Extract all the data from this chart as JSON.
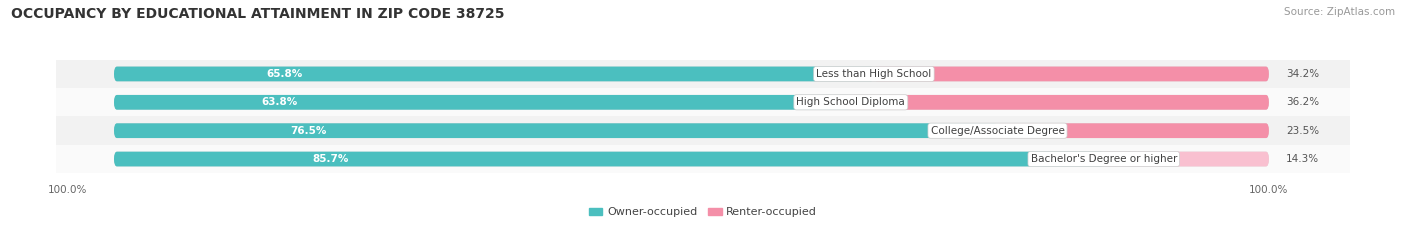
{
  "title": "OCCUPANCY BY EDUCATIONAL ATTAINMENT IN ZIP CODE 38725",
  "source": "Source: ZipAtlas.com",
  "categories": [
    "Less than High School",
    "High School Diploma",
    "College/Associate Degree",
    "Bachelor's Degree or higher"
  ],
  "owner_pct": [
    65.8,
    63.8,
    76.5,
    85.7
  ],
  "renter_pct": [
    34.2,
    36.2,
    23.5,
    14.3
  ],
  "owner_color": "#4BBFBF",
  "renter_color": "#F48FA8",
  "renter_color_light": "#F9C0D0",
  "bg_track_color": "#DCDCDC",
  "row_bg_even": "#F2F2F2",
  "row_bg_odd": "#FAFAFA",
  "title_fontsize": 10,
  "label_fontsize": 7.5,
  "pct_fontsize": 7.5,
  "tick_fontsize": 7.5,
  "source_fontsize": 7.5,
  "legend_fontsize": 8,
  "axis_label_left": "100.0%",
  "axis_label_right": "100.0%",
  "background_color": "#FFFFFF"
}
